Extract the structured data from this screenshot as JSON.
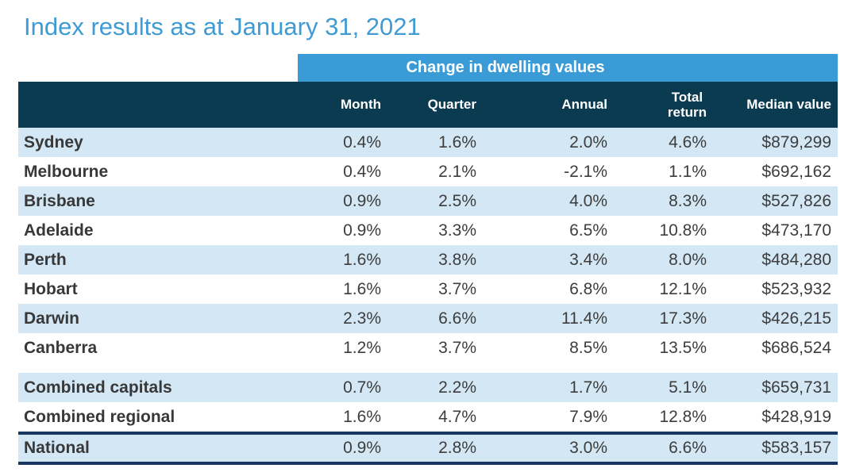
{
  "title": "Index results as at January 31, 2021",
  "colors": {
    "title_blue": "#3E9BD4",
    "band_blue": "#3A9BD7",
    "header_teal": "#0A3B50",
    "row_blue": "#D3E7F5",
    "border_navy": "#17375E",
    "text_dark": "#3D3D3D"
  },
  "table": {
    "group_header": "Change in dwelling values",
    "columns": [
      {
        "label": "Month"
      },
      {
        "label": "Quarter"
      },
      {
        "label": "Annual"
      },
      {
        "label": "Total return",
        "label_lines": [
          "Total",
          "return"
        ]
      },
      {
        "label": "Median value"
      }
    ],
    "rows": [
      {
        "region": "Sydney",
        "month": "0.4%",
        "quarter": "1.6%",
        "annual": "2.0%",
        "total_return": "4.6%",
        "median_value": "$879,299",
        "section": "capital_cities"
      },
      {
        "region": "Melbourne",
        "month": "0.4%",
        "quarter": "2.1%",
        "annual": "-2.1%",
        "total_return": "1.1%",
        "median_value": "$692,162",
        "section": "capital_cities"
      },
      {
        "region": "Brisbane",
        "month": "0.9%",
        "quarter": "2.5%",
        "annual": "4.0%",
        "total_return": "8.3%",
        "median_value": "$527,826",
        "section": "capital_cities"
      },
      {
        "region": "Adelaide",
        "month": "0.9%",
        "quarter": "3.3%",
        "annual": "6.5%",
        "total_return": "10.8%",
        "median_value": "$473,170",
        "section": "capital_cities"
      },
      {
        "region": "Perth",
        "month": "1.6%",
        "quarter": "3.8%",
        "annual": "3.4%",
        "total_return": "8.0%",
        "median_value": "$484,280",
        "section": "capital_cities"
      },
      {
        "region": "Hobart",
        "month": "1.6%",
        "quarter": "3.7%",
        "annual": "6.8%",
        "total_return": "12.1%",
        "median_value": "$523,932",
        "section": "capital_cities"
      },
      {
        "region": "Darwin",
        "month": "2.3%",
        "quarter": "6.6%",
        "annual": "11.4%",
        "total_return": "17.3%",
        "median_value": "$426,215",
        "section": "capital_cities"
      },
      {
        "region": "Canberra",
        "month": "1.2%",
        "quarter": "3.7%",
        "annual": "8.5%",
        "total_return": "13.5%",
        "median_value": "$686,524",
        "section": "capital_cities"
      },
      {
        "region": "Combined capitals",
        "month": "0.7%",
        "quarter": "2.2%",
        "annual": "1.7%",
        "total_return": "5.1%",
        "median_value": "$659,731",
        "section": "combined"
      },
      {
        "region": "Combined regional",
        "month": "1.6%",
        "quarter": "4.7%",
        "annual": "7.9%",
        "total_return": "12.8%",
        "median_value": "$428,919",
        "section": "combined"
      },
      {
        "region": "National",
        "month": "0.9%",
        "quarter": "2.8%",
        "annual": "3.0%",
        "total_return": "6.6%",
        "median_value": "$583,157",
        "section": "national"
      }
    ]
  }
}
